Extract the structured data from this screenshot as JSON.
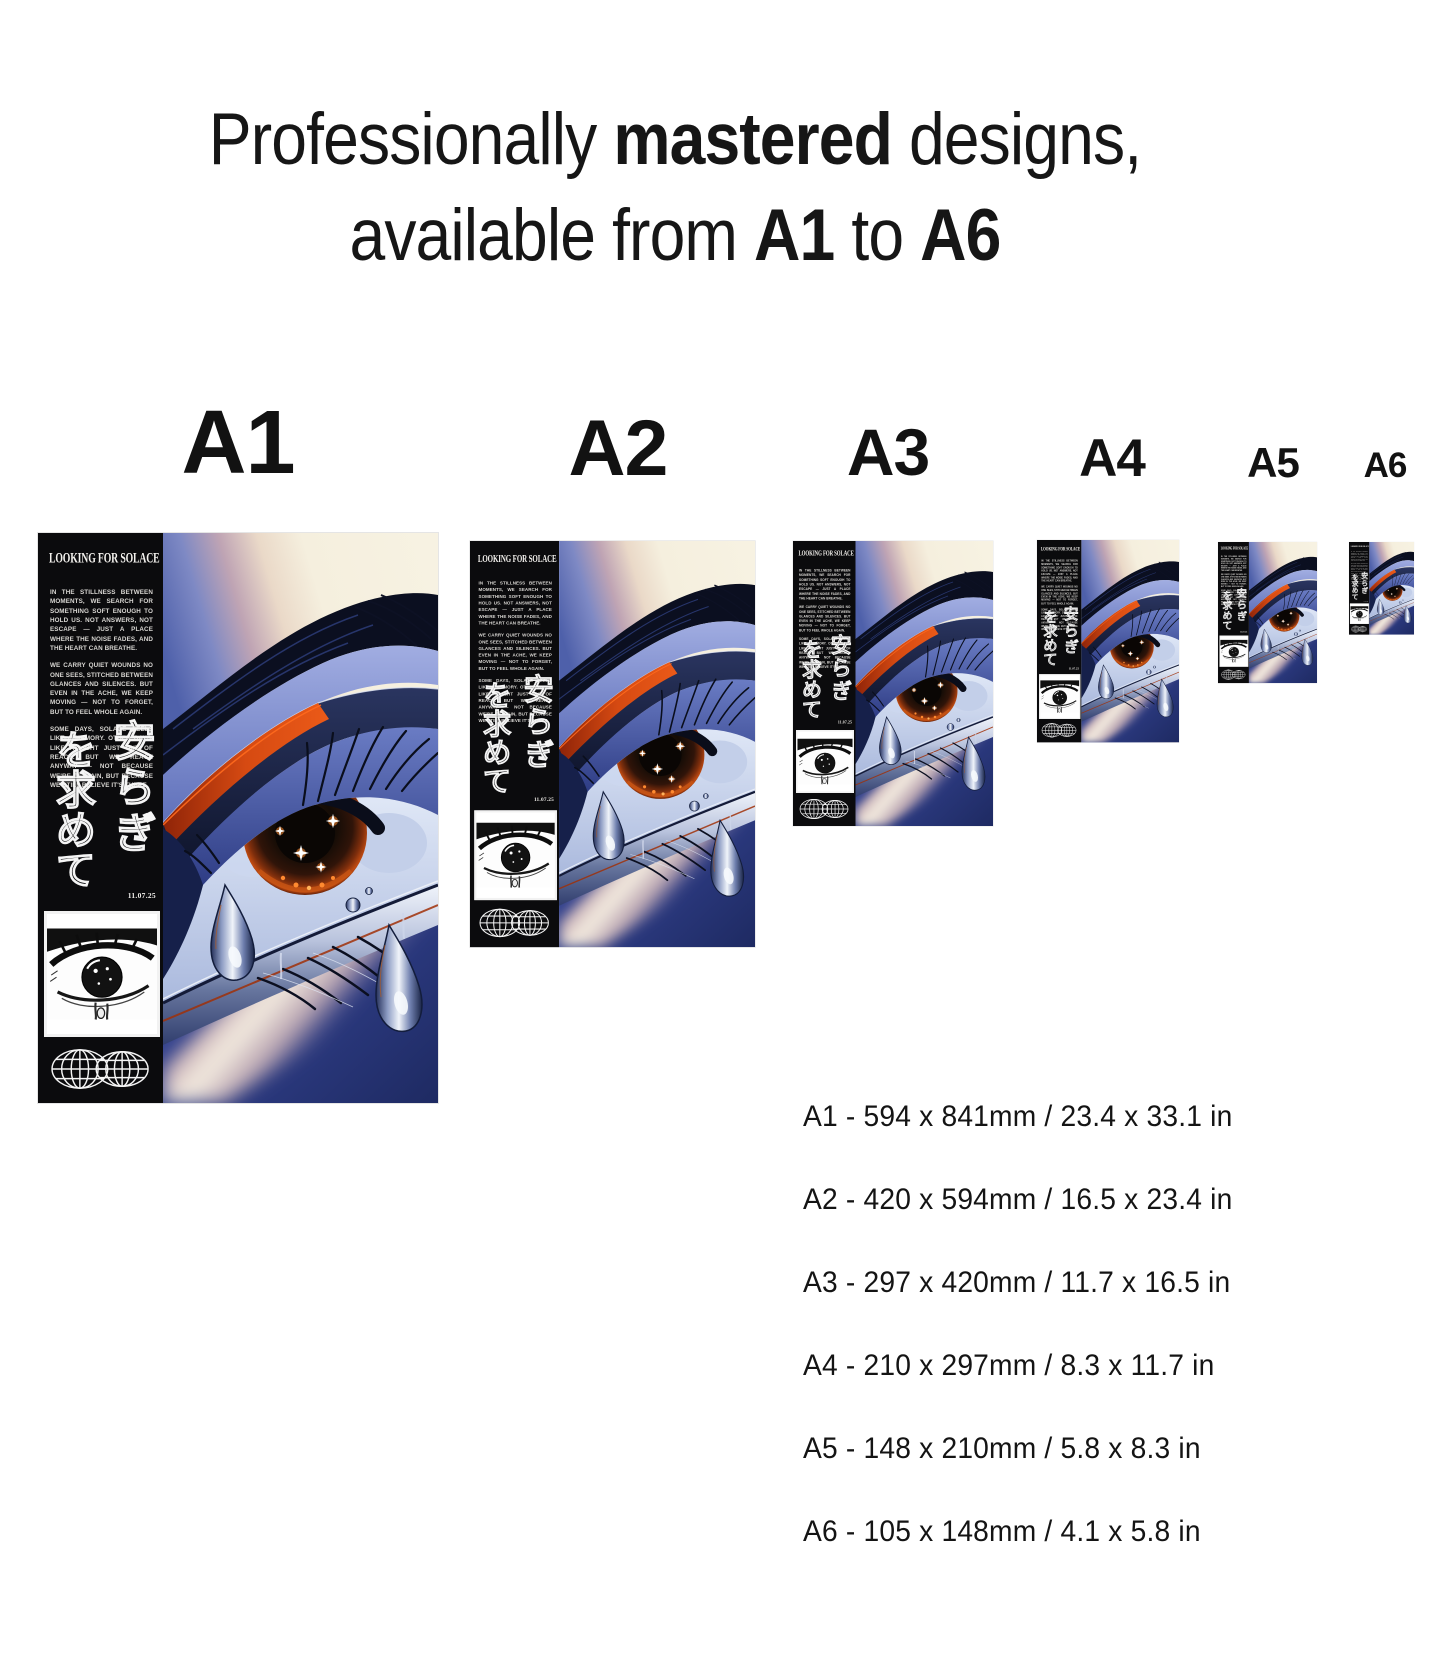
{
  "page": {
    "background": "#ffffff"
  },
  "heading": {
    "line1_pre": "Professionally ",
    "line1_bold": "mastered",
    "line1_post": " designs,",
    "line2_pre": "available from ",
    "line2_bold1": "A1",
    "line2_mid": " to ",
    "line2_bold2": "A6"
  },
  "size_labels": [
    "A1",
    "A2",
    "A3",
    "A4",
    "A5",
    "A6"
  ],
  "poster": {
    "title": "LOOKING FOR SOLACE",
    "paragraphs": [
      "IN THE STILLNESS BETWEEN MOMENTS, WE SEARCH FOR SOMETHING SOFT ENOUGH TO HOLD US. NOT ANSWERS, NOT ESCAPE — JUST A PLACE WHERE THE NOISE FADES, AND THE HEART CAN BREATHE.",
      "WE CARRY QUIET WOUNDS NO ONE SEES, STITCHED BETWEEN GLANCES AND SILENCES. BUT EVEN IN THE ACHE, WE KEEP MOVING — NOT TO FORGET, BUT TO FEEL WHOLE AGAIN.",
      "SOME DAYS, SOLACE FEELS LIKE A MEMORY. OTHER DAYS, LIKE A LIGHT JUST OUT OF REACH. BUT WE REACH ANYWAY — NOT BECAUSE WE'RE CERTAIN, BUT BECAUSE WE STILL BELIEVE IT'S THERE."
    ],
    "japanese_right": "安らぎ",
    "japanese_left": "を求めて",
    "date": "11.07.25",
    "icons": {
      "thumbnail": "bw-crying-eye-illustration",
      "globe": "double-globe-icon"
    }
  },
  "size_list": [
    {
      "label": "A1",
      "mm": "594 x 841mm",
      "inches": "23.4 x 33.1 in",
      "text": "A1 - 594 x 841mm /  23.4 x 33.1 in"
    },
    {
      "label": "A2",
      "mm": "420 x 594mm",
      "inches": "16.5 x 23.4 in",
      "text": "A2  - 420 x 594mm / 16.5 x 23.4 in"
    },
    {
      "label": "A3",
      "mm": "297 x 420mm",
      "inches": "11.7 x 16.5 in",
      "text": "A3 - 297 x 420mm  / 11.7 x 16.5 in"
    },
    {
      "label": "A4",
      "mm": "210 x 297mm",
      "inches": "8.3 x 11.7 in",
      "text": "A4  - 210 x 297mm  / 8.3 x 11.7 in"
    },
    {
      "label": "A5",
      "mm": "148 x 210mm",
      "inches": "5.8 x 8.3 in",
      "text": "A5 - 148 x 210mm / 5.8 x 8.3 in"
    },
    {
      "label": "A6",
      "mm": "105 x 148mm",
      "inches": "4.1 x 5.8 in",
      "text": "A6 - 105 x 148mm / 4.1 x 5.8 in"
    }
  ],
  "colors": {
    "poster_black": "#0b0b0d",
    "art_blue": "#4e60aa",
    "art_deep_blue": "#1e2a62",
    "art_cream": "#f6f0e0",
    "art_red": "#d64a12",
    "glow_orange": "#ff8a30",
    "chrome_light": "#f0f4fb",
    "text": "#141414"
  }
}
